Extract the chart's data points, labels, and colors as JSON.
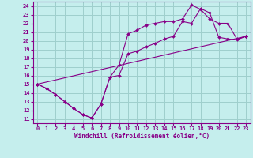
{
  "xlabel": "Windchill (Refroidissement éolien,°C)",
  "xlim": [
    -0.5,
    23.5
  ],
  "ylim": [
    10.5,
    24.5
  ],
  "xticks": [
    0,
    1,
    2,
    3,
    4,
    5,
    6,
    7,
    8,
    9,
    10,
    11,
    12,
    13,
    14,
    15,
    16,
    17,
    18,
    19,
    20,
    21,
    22,
    23
  ],
  "yticks": [
    11,
    12,
    13,
    14,
    15,
    16,
    17,
    18,
    19,
    20,
    21,
    22,
    23,
    24
  ],
  "bg_color": "#c5eeed",
  "grid_color": "#9ecfcd",
  "line_color": "#880088",
  "line1_x": [
    0,
    1,
    2,
    3,
    4,
    5,
    6,
    7,
    8,
    9,
    10,
    11,
    12,
    13,
    14,
    15,
    16,
    17,
    18,
    19,
    20,
    21,
    22,
    23
  ],
  "line1_y": [
    15.0,
    14.5,
    13.8,
    13.0,
    12.2,
    11.5,
    11.1,
    12.7,
    15.8,
    16.0,
    18.5,
    18.8,
    19.3,
    19.7,
    20.2,
    20.5,
    22.2,
    22.0,
    23.7,
    23.2,
    20.4,
    20.2,
    20.1,
    20.5
  ],
  "line2_x": [
    0,
    1,
    2,
    3,
    4,
    5,
    6,
    7,
    8,
    9,
    10,
    11,
    12,
    13,
    14,
    15,
    16,
    17,
    18,
    19,
    20,
    21,
    22,
    23
  ],
  "line2_y": [
    15.0,
    14.5,
    13.8,
    13.0,
    12.2,
    11.5,
    11.1,
    12.7,
    15.8,
    17.2,
    20.8,
    21.2,
    21.8,
    22.0,
    22.2,
    22.2,
    22.5,
    24.1,
    23.6,
    22.5,
    22.0,
    22.0,
    20.2,
    20.5
  ],
  "line3_x": [
    0,
    23
  ],
  "line3_y": [
    15.0,
    20.5
  ]
}
